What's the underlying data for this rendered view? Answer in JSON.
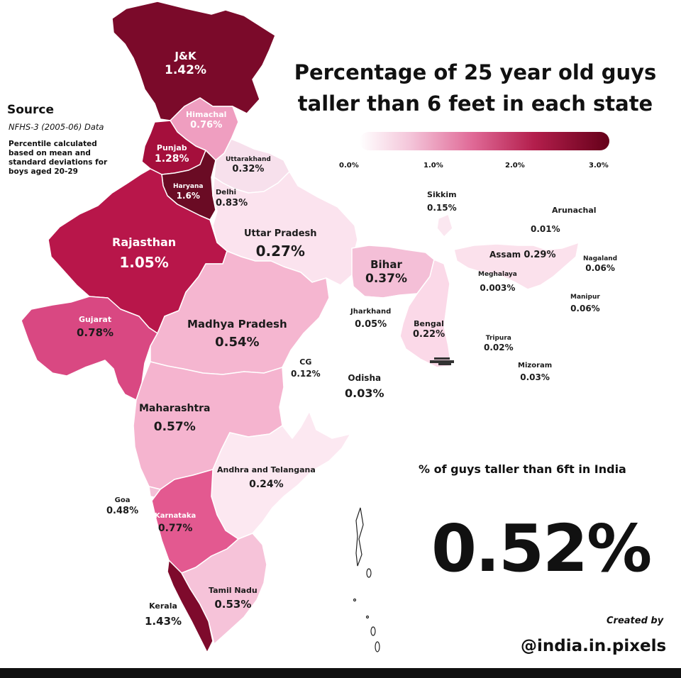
{
  "title_line1": "Percentage of 25 year old guys",
  "title_line2": "taller than 6 feet in each state",
  "source": {
    "heading": "Source",
    "data": "NFHS-3 (2005-06) Data",
    "note_line1": "Percentile calculated",
    "note_line2": "based on mean and",
    "note_line3": "standard deviations for",
    "note_line4": "boys aged 20-29"
  },
  "legend": {
    "ticks": [
      "0.0%",
      "1.0%",
      "2.0%",
      "3.0%"
    ],
    "color_low": "#ffffff",
    "color_high": "#650019"
  },
  "states": {
    "jk": {
      "name": "J&K",
      "value": "1.42%"
    },
    "himachal": {
      "name": "Himachal",
      "value": "0.76%"
    },
    "punjab": {
      "name": "Punjab",
      "value": "1.28%"
    },
    "haryana": {
      "name": "Haryana",
      "value": "1.6%"
    },
    "delhi": {
      "name": "Delhi",
      "value": "0.83%"
    },
    "uttarakhand": {
      "name": "Uttarakhand",
      "value": "0.32%"
    },
    "rajasthan": {
      "name": "Rajasthan",
      "value": "1.05%"
    },
    "uttar_pradesh": {
      "name": "Uttar Pradesh",
      "value": "0.27%"
    },
    "bihar": {
      "name": "Bihar",
      "value": "0.37%"
    },
    "sikkim": {
      "name": "Sikkim",
      "value": "0.15%"
    },
    "arunachal": {
      "name": "Arunachal",
      "value": "0.01%"
    },
    "assam": {
      "name": "Assam",
      "value": "0.29%"
    },
    "meghalaya": {
      "name": "Meghalaya",
      "value": "0.003%"
    },
    "nagaland": {
      "name": "Nagaland",
      "value": "0.06%"
    },
    "manipur": {
      "name": "Manipur",
      "value": "0.06%"
    },
    "tripura": {
      "name": "Tripura",
      "value": "0.02%"
    },
    "mizoram": {
      "name": "Mizoram",
      "value": "0.03%"
    },
    "gujarat": {
      "name": "Gujarat",
      "value": "0.78%"
    },
    "madhya_pradesh": {
      "name": "Madhya Pradesh",
      "value": "0.54%"
    },
    "jharkhand": {
      "name": "Jharkhand",
      "value": "0.05%"
    },
    "bengal": {
      "name": "Bengal",
      "value": "0.22%"
    },
    "cg": {
      "name": "CG",
      "value": "0.12%"
    },
    "odisha": {
      "name": "Odisha",
      "value": "0.03%"
    },
    "maharashtra": {
      "name": "Maharashtra",
      "value": "0.57%"
    },
    "andhra_telangana": {
      "name": "Andhra and Telangana",
      "value": "0.24%"
    },
    "goa": {
      "name": "Goa",
      "value": "0.48%"
    },
    "karnataka": {
      "name": "Karnataka",
      "value": "0.77%"
    },
    "kerala": {
      "name": "Kerala",
      "value": "1.43%"
    },
    "tamil_nadu": {
      "name": "Tamil Nadu",
      "value": "0.53%"
    }
  },
  "india": {
    "label": "% of guys taller than 6ft in India",
    "value": "0.52%"
  },
  "credit": {
    "created_by": "Created by",
    "handle": "@india.in.pixels"
  }
}
